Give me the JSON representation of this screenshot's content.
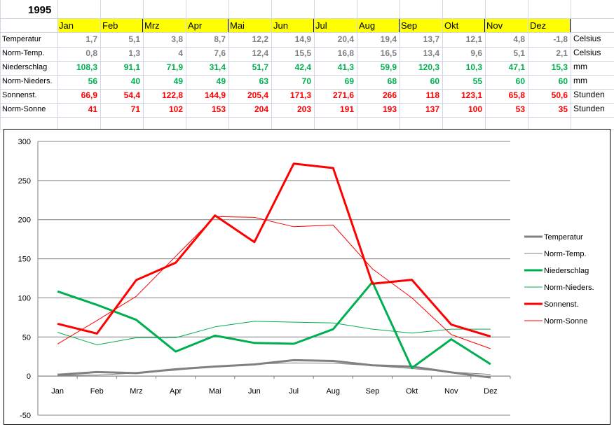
{
  "header": {
    "year": "1995"
  },
  "months": [
    "Jan",
    "Feb",
    "Mrz",
    "Apr",
    "Mai",
    "Jun",
    "Jul",
    "Aug",
    "Sep",
    "Okt",
    "Nov",
    "Dez"
  ],
  "rows": [
    {
      "label": "Temperatur",
      "unit": "Celsius",
      "color": "#808080",
      "values": [
        "1,7",
        "5,1",
        "3,8",
        "8,7",
        "12,2",
        "14,9",
        "20,4",
        "19,4",
        "13,7",
        "12,1",
        "4,8",
        "-1,8"
      ]
    },
    {
      "label": "Norm-Temp.",
      "unit": "Celsius",
      "color": "#808080",
      "values": [
        "0,8",
        "1,3",
        "4",
        "7,6",
        "12,4",
        "15,5",
        "16,8",
        "16,5",
        "13,4",
        "9,6",
        "5,1",
        "2,1"
      ]
    },
    {
      "label": "Niederschlag",
      "unit": "mm",
      "color": "#00b050",
      "values": [
        "108,3",
        "91,1",
        "71,9",
        "31,4",
        "51,7",
        "42,4",
        "41,3",
        "59,9",
        "120,3",
        "10,3",
        "47,1",
        "15,3"
      ]
    },
    {
      "label": "Norm-Nieders.",
      "unit": "mm",
      "color": "#00b050",
      "values": [
        "56",
        "40",
        "49",
        "49",
        "63",
        "70",
        "69",
        "68",
        "60",
        "55",
        "60",
        "60"
      ]
    },
    {
      "label": "Sonnenst.",
      "unit": "Stunden",
      "color": "#ff0000",
      "values": [
        "66,9",
        "54,4",
        "122,8",
        "144,9",
        "205,4",
        "171,3",
        "271,6",
        "266",
        "118",
        "123,1",
        "65,8",
        "50,6"
      ]
    },
    {
      "label": "Norm-Sonne",
      "unit": "Stunden",
      "color": "#ff0000",
      "values": [
        "41",
        "71",
        "102",
        "153",
        "204",
        "203",
        "191",
        "193",
        "137",
        "100",
        "53",
        "35"
      ]
    }
  ],
  "chart_data": {
    "type": "line",
    "categories": [
      "Jan",
      "Feb",
      "Mrz",
      "Apr",
      "Mai",
      "Jun",
      "Jul",
      "Aug",
      "Sep",
      "Okt",
      "Nov",
      "Dez"
    ],
    "ylim": [
      -50,
      300
    ],
    "yticks": [
      -50,
      0,
      50,
      100,
      150,
      200,
      250,
      300
    ],
    "grid": true,
    "legend_position": "right",
    "series": [
      {
        "name": "Temperatur",
        "color": "#808080",
        "width": 3,
        "values": [
          1.7,
          5.1,
          3.8,
          8.7,
          12.2,
          14.9,
          20.4,
          19.4,
          13.7,
          12.1,
          4.8,
          -1.8
        ]
      },
      {
        "name": "Norm-Temp.",
        "color": "#808080",
        "width": 1,
        "values": [
          0.8,
          1.3,
          4,
          7.6,
          12.4,
          15.5,
          16.8,
          16.5,
          13.4,
          9.6,
          5.1,
          2.1
        ]
      },
      {
        "name": "Niederschlag",
        "color": "#00b050",
        "width": 3,
        "values": [
          108.3,
          91.1,
          71.9,
          31.4,
          51.7,
          42.4,
          41.3,
          59.9,
          120.3,
          10.3,
          47.1,
          15.3
        ]
      },
      {
        "name": "Norm-Nieders.",
        "color": "#00b050",
        "width": 1,
        "values": [
          56,
          40,
          49,
          49,
          63,
          70,
          69,
          68,
          60,
          55,
          60,
          60
        ]
      },
      {
        "name": "Sonnenst.",
        "color": "#ff0000",
        "width": 3,
        "values": [
          66.9,
          54.4,
          122.8,
          144.9,
          205.4,
          171.3,
          271.6,
          266,
          118,
          123.1,
          65.8,
          50.6
        ]
      },
      {
        "name": "Norm-Sonne",
        "color": "#ff0000",
        "width": 1,
        "values": [
          41,
          71,
          102,
          153,
          204,
          203,
          191,
          193,
          137,
          100,
          53,
          35
        ]
      }
    ]
  }
}
